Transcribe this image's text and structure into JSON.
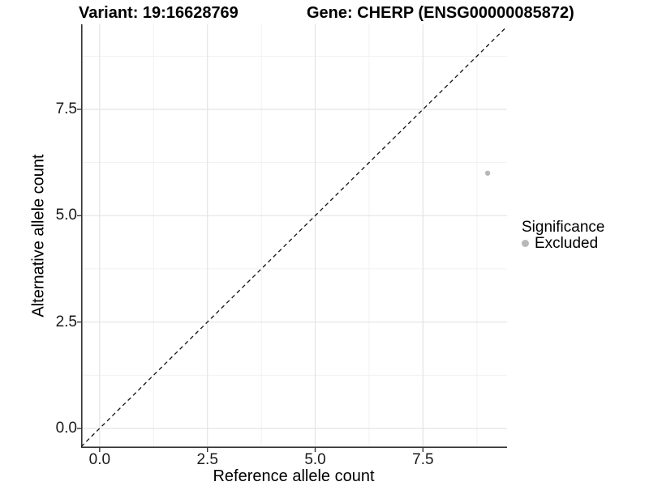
{
  "titles": {
    "left": "Variant: 19:16628769",
    "right": "Gene: CHERP (ENSG00000085872)"
  },
  "chart_data": {
    "type": "scatter",
    "xlabel": "Reference allele count",
    "ylabel": "Alternative allele count",
    "xlim": [
      -0.43,
      9.45
    ],
    "ylim": [
      -0.46,
      9.5
    ],
    "xticks": [
      0.0,
      2.5,
      5.0,
      7.5
    ],
    "yticks": [
      0.0,
      2.5,
      5.0,
      7.5
    ],
    "x_minor": [
      1.25,
      3.75,
      6.25,
      8.75
    ],
    "y_minor": [
      1.25,
      3.75,
      6.25,
      8.75
    ],
    "tick_decimals": 1,
    "grid": "major+minor",
    "reference_line": {
      "slope": 1,
      "intercept": 0,
      "style": "dashed"
    },
    "series": [
      {
        "name": "Excluded",
        "color": "#b8b8b8",
        "points": [
          {
            "x": 9,
            "y": 6
          }
        ]
      }
    ],
    "legend": {
      "title": "Significance",
      "position": "right",
      "items": [
        {
          "label": "Excluded",
          "color": "#b8b8b8"
        }
      ]
    },
    "colors": {
      "grid_major": "#e4e4e4",
      "grid_minor": "#f1f1f1",
      "axis_line": "#333333",
      "reference_line": "#111111",
      "tick_text": "#1a1a1a"
    }
  }
}
